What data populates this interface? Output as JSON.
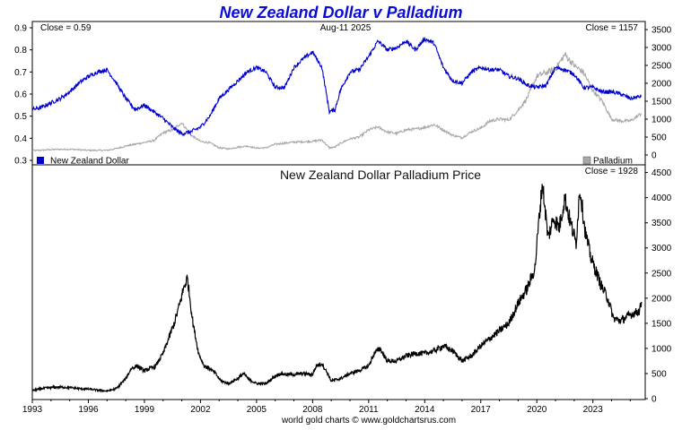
{
  "chart_data": [
    {
      "type": "line",
      "panel": "top",
      "title": "New Zealand Dollar v Palladium",
      "date_label": "Aug-11  2025",
      "left_axis": {
        "ylim": [
          0.3,
          0.9
        ],
        "ticks": [
          "0.9",
          "0.8",
          "0.7",
          "0.6",
          "0.5",
          "0.4",
          "0.3"
        ],
        "tick_values": [
          0.9,
          0.8,
          0.7,
          0.6,
          0.5,
          0.4,
          0.3
        ]
      },
      "right_axis": {
        "ylim": [
          -200,
          3600
        ],
        "ticks": [
          "3500",
          "3000",
          "2500",
          "2000",
          "1500",
          "1000",
          "500",
          "0"
        ],
        "tick_values": [
          3500,
          3000,
          2500,
          2000,
          1500,
          1000,
          500,
          0
        ]
      },
      "grid": false,
      "series": [
        {
          "name": "New Zealand Dollar",
          "axis": "left",
          "color": "#0000cc",
          "close_label": "Close = 0.59",
          "x": [
            1993.0,
            1993.5,
            1994.0,
            1994.5,
            1995.0,
            1995.5,
            1996.0,
            1996.5,
            1997.0,
            1997.5,
            1998.0,
            1998.5,
            1999.0,
            1999.5,
            2000.0,
            2000.5,
            2001.0,
            2001.5,
            2002.0,
            2002.5,
            2003.0,
            2003.5,
            2004.0,
            2004.5,
            2005.0,
            2005.5,
            2006.0,
            2006.5,
            2007.0,
            2007.5,
            2008.0,
            2008.5,
            2008.9,
            2009.2,
            2009.5,
            2010.0,
            2010.5,
            2011.0,
            2011.5,
            2012.0,
            2012.5,
            2013.0,
            2013.5,
            2014.0,
            2014.5,
            2015.0,
            2015.5,
            2016.0,
            2016.5,
            2017.0,
            2017.5,
            2018.0,
            2018.5,
            2019.0,
            2019.5,
            2020.0,
            2020.5,
            2021.0,
            2021.5,
            2022.0,
            2022.5,
            2023.0,
            2023.5,
            2024.0,
            2024.5,
            2025.0,
            2025.6
          ],
          "y": [
            0.53,
            0.54,
            0.56,
            0.58,
            0.61,
            0.65,
            0.68,
            0.7,
            0.71,
            0.65,
            0.58,
            0.53,
            0.55,
            0.52,
            0.49,
            0.45,
            0.42,
            0.43,
            0.45,
            0.5,
            0.58,
            0.62,
            0.66,
            0.7,
            0.72,
            0.7,
            0.63,
            0.63,
            0.72,
            0.76,
            0.79,
            0.72,
            0.52,
            0.53,
            0.62,
            0.7,
            0.71,
            0.77,
            0.84,
            0.8,
            0.81,
            0.84,
            0.8,
            0.85,
            0.83,
            0.72,
            0.66,
            0.65,
            0.7,
            0.72,
            0.71,
            0.71,
            0.68,
            0.67,
            0.64,
            0.63,
            0.64,
            0.72,
            0.71,
            0.69,
            0.63,
            0.63,
            0.61,
            0.61,
            0.6,
            0.58,
            0.59
          ]
        },
        {
          "name": "Palladium",
          "axis": "right",
          "color": "#a8a8a8",
          "close_label": "Close = 1157",
          "x": [
            1993.0,
            1994.0,
            1995.0,
            1996.0,
            1997.0,
            1997.5,
            1998.0,
            1998.5,
            1999.0,
            1999.5,
            2000.0,
            2000.5,
            2001.0,
            2001.5,
            2002.0,
            2002.5,
            2003.0,
            2003.5,
            2004.0,
            2004.5,
            2005.0,
            2005.5,
            2006.0,
            2006.5,
            2007.0,
            2007.5,
            2008.0,
            2008.5,
            2008.9,
            2009.2,
            2009.5,
            2010.0,
            2010.5,
            2011.0,
            2011.5,
            2012.0,
            2012.5,
            2013.0,
            2013.5,
            2014.0,
            2014.5,
            2015.0,
            2015.5,
            2016.0,
            2016.5,
            2017.0,
            2017.5,
            2018.0,
            2018.5,
            2019.0,
            2019.5,
            2020.0,
            2020.5,
            2021.0,
            2021.5,
            2022.0,
            2022.5,
            2023.0,
            2023.5,
            2024.0,
            2024.5,
            2025.0,
            2025.6
          ],
          "y": [
            120,
            150,
            160,
            130,
            130,
            180,
            250,
            300,
            350,
            400,
            620,
            700,
            900,
            550,
            380,
            340,
            200,
            170,
            220,
            250,
            190,
            200,
            300,
            330,
            360,
            370,
            380,
            420,
            200,
            220,
            330,
            450,
            500,
            700,
            780,
            640,
            600,
            700,
            720,
            770,
            850,
            700,
            550,
            480,
            650,
            750,
            950,
            1000,
            980,
            1250,
            1600,
            2200,
            2300,
            2400,
            2800,
            2500,
            2300,
            1800,
            1500,
            1000,
            950,
            950,
            1157
          ]
        }
      ],
      "legend": {
        "left": "New Zealand Dollar",
        "right": "Palladium",
        "placement": "bottom"
      }
    },
    {
      "type": "line",
      "panel": "bottom",
      "title": "New Zealand Dollar Palladium Price",
      "close_label": "Close = 1928",
      "ylim": [
        0,
        4600
      ],
      "y_ticks": [
        "4500",
        "4000",
        "3500",
        "3000",
        "2500",
        "2000",
        "1500",
        "1000",
        "500",
        "0"
      ],
      "y_tick_values": [
        4500,
        4000,
        3500,
        3000,
        2500,
        2000,
        1500,
        1000,
        500,
        0
      ],
      "xlim": [
        1993.0,
        2025.8
      ],
      "x_ticks": [
        "1993",
        "1996",
        "1999",
        "2002",
        "2005",
        "2008",
        "2011",
        "2014",
        "2017",
        "2020",
        "2023"
      ],
      "x_tick_values": [
        1993,
        1996,
        1999,
        2002,
        2005,
        2008,
        2011,
        2014,
        2017,
        2020,
        2023
      ],
      "grid": false,
      "series": [
        {
          "name": "",
          "color": "#000000",
          "x": [
            1993.0,
            1993.5,
            1994.0,
            1994.5,
            1995.0,
            1995.5,
            1996.0,
            1996.5,
            1997.0,
            1997.5,
            1998.0,
            1998.3,
            1998.6,
            1999.0,
            1999.3,
            1999.6,
            2000.0,
            2000.3,
            2000.6,
            2000.9,
            2001.1,
            2001.3,
            2001.6,
            2001.9,
            2002.2,
            2002.5,
            2002.8,
            2003.1,
            2003.5,
            2004.0,
            2004.3,
            2004.6,
            2005.0,
            2005.5,
            2006.0,
            2006.3,
            2006.6,
            2007.0,
            2007.5,
            2008.0,
            2008.2,
            2008.5,
            2008.8,
            2009.0,
            2009.5,
            2010.0,
            2010.5,
            2011.0,
            2011.3,
            2011.6,
            2012.0,
            2012.5,
            2013.0,
            2013.5,
            2014.0,
            2014.5,
            2015.0,
            2015.5,
            2016.0,
            2016.5,
            2017.0,
            2017.5,
            2018.0,
            2018.5,
            2019.0,
            2019.5,
            2019.9,
            2020.1,
            2020.3,
            2020.6,
            2020.9,
            2021.2,
            2021.5,
            2021.8,
            2022.1,
            2022.3,
            2022.6,
            2022.9,
            2023.2,
            2023.5,
            2023.8,
            2024.1,
            2024.5,
            2024.9,
            2025.2,
            2025.5,
            2025.6
          ],
          "y": [
            160,
            200,
            220,
            230,
            220,
            200,
            190,
            170,
            150,
            200,
            400,
            600,
            650,
            550,
            600,
            650,
            900,
            1200,
            1500,
            1900,
            2200,
            2400,
            1500,
            900,
            650,
            600,
            500,
            350,
            300,
            400,
            500,
            380,
            300,
            300,
            450,
            500,
            480,
            480,
            500,
            480,
            650,
            700,
            500,
            350,
            400,
            500,
            560,
            650,
            900,
            1000,
            750,
            750,
            850,
            900,
            900,
            950,
            1050,
            950,
            750,
            850,
            1050,
            1200,
            1350,
            1500,
            1900,
            2200,
            2600,
            3500,
            4300,
            3200,
            3600,
            3400,
            4000,
            3500,
            3100,
            4200,
            3300,
            2800,
            2500,
            2200,
            2000,
            1600,
            1550,
            1650,
            1700,
            1750,
            1928
          ]
        }
      ]
    }
  ],
  "footer": "world gold charts © www.goldchartsrus.com"
}
